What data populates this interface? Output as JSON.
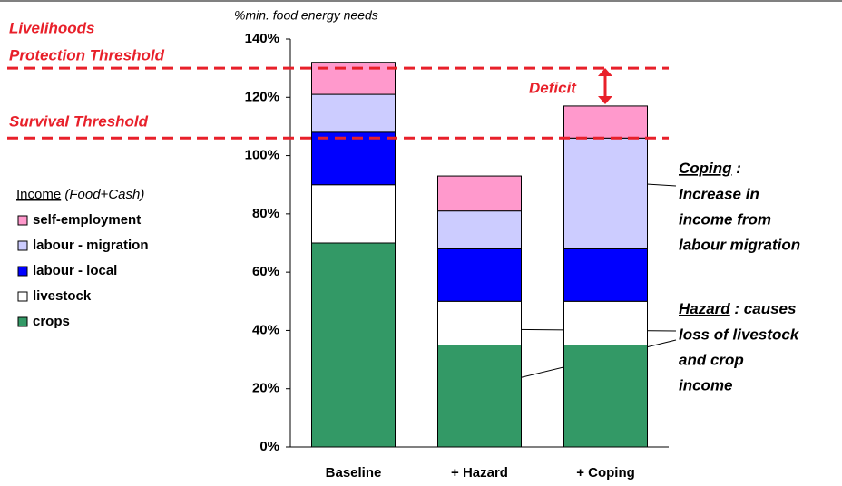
{
  "chart_data": {
    "type": "stacked_bar",
    "y_axis_title": "%min. food energy needs",
    "categories": [
      "Baseline",
      "+ Hazard",
      "+ Coping"
    ],
    "series": [
      {
        "name": "crops",
        "color": "#339966",
        "values": [
          70,
          35,
          35
        ]
      },
      {
        "name": "livestock",
        "color": "#ffffff",
        "values": [
          20,
          15,
          15
        ]
      },
      {
        "name": "labour - local",
        "color": "#0000ff",
        "values": [
          18,
          18,
          18
        ]
      },
      {
        "name": "labour - migration",
        "color": "#ccccff",
        "values": [
          13,
          13,
          38
        ]
      },
      {
        "name": "self-employment",
        "color": "#ff99cc",
        "values": [
          11,
          12,
          11
        ]
      }
    ],
    "ylim": [
      0,
      140
    ],
    "yticks": [
      {
        "value": 0,
        "label": "0%"
      },
      {
        "value": 20,
        "label": "20%"
      },
      {
        "value": 40,
        "label": "40%"
      },
      {
        "value": 60,
        "label": "60%"
      },
      {
        "value": 80,
        "label": "80%"
      },
      {
        "value": 100,
        "label": "100%"
      },
      {
        "value": 120,
        "label": "120%"
      },
      {
        "value": 140,
        "label": "140%"
      }
    ],
    "legend_title": {
      "underlined": "Income",
      "rest": " (Food+Cash)"
    },
    "thresholds": [
      {
        "label_lines": [
          "Livelihoods",
          "Protection Threshold"
        ],
        "value": 130,
        "color": "#e8202a"
      },
      {
        "label_lines": [
          "Survival Threshold"
        ],
        "value": 106,
        "color": "#e8202a"
      }
    ],
    "deficit_label": "Deficit",
    "coping_annotation": {
      "title": "Coping",
      "title_end": " :",
      "lines": [
        "Increase in",
        "income from",
        "labour migration"
      ]
    },
    "hazard_annotation": {
      "title": "Hazard",
      "title_end": " : causes",
      "lines": [
        "loss of livestock",
        "and crop",
        "income"
      ]
    }
  }
}
